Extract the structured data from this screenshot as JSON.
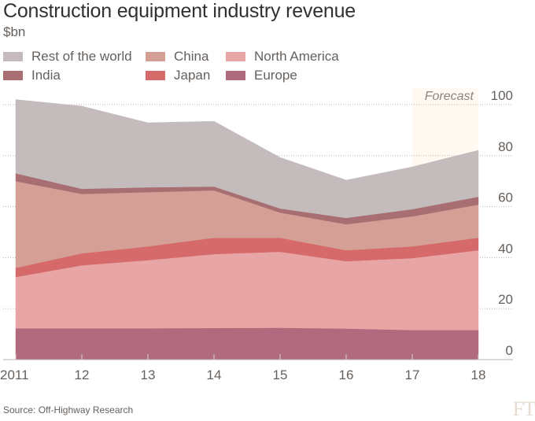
{
  "chart_data": {
    "type": "area",
    "stacked": true,
    "title": "Construction equipment industry revenue",
    "subtitle": "$bn",
    "xlabel": "",
    "ylabel": "$bn",
    "x": [
      "2011",
      "12",
      "13",
      "14",
      "15",
      "16",
      "17",
      "18"
    ],
    "ylim": [
      0,
      100
    ],
    "yticks": [
      0,
      20,
      40,
      60,
      80,
      100
    ],
    "grid": true,
    "legend_position": "top-left",
    "annotations": [
      {
        "text": "Forecast",
        "x_range": [
          "17",
          "18"
        ]
      }
    ],
    "series": [
      {
        "name": "Europe",
        "color": "#b06a7d",
        "values": [
          12.3,
          12.3,
          12.3,
          12.4,
          12.5,
          12.2,
          11.6,
          11.6
        ]
      },
      {
        "name": "North America",
        "color": "#e8a5a5",
        "values": [
          20.1,
          24.7,
          26.7,
          29.0,
          29.8,
          26.4,
          28.2,
          31.3
        ]
      },
      {
        "name": "Japan",
        "color": "#d66a6a",
        "values": [
          3.6,
          4.7,
          5.4,
          6.4,
          5.5,
          4.3,
          4.6,
          4.9
        ]
      },
      {
        "name": "China",
        "color": "#d4a095",
        "values": [
          34.0,
          23.3,
          21.3,
          18.6,
          9.9,
          10.2,
          11.8,
          13.0
        ]
      },
      {
        "name": "India",
        "color": "#a86e72",
        "values": [
          3.1,
          2.0,
          1.9,
          1.5,
          1.6,
          2.5,
          2.8,
          3.1
        ]
      },
      {
        "name": "Rest of the world",
        "color": "#c4bcbc",
        "values": [
          28.9,
          32.4,
          25.3,
          25.6,
          20.0,
          14.8,
          16.6,
          18.2
        ]
      }
    ],
    "source": "Source: Off-Highway Research"
  },
  "header": {
    "title": "Construction equipment industry revenue",
    "subtitle": "$bn"
  },
  "legend": [
    {
      "label": "Rest of the world",
      "color": "#c4bcbc"
    },
    {
      "label": "China",
      "color": "#d4a095"
    },
    {
      "label": "North America",
      "color": "#e8a5a5"
    },
    {
      "label": "India",
      "color": "#a86e72"
    },
    {
      "label": "Japan",
      "color": "#d66a6a"
    },
    {
      "label": "Europe",
      "color": "#b06a7d"
    }
  ],
  "forecast_label": "Forecast",
  "forecast_color": "#fff9f1",
  "footer": {
    "source": "Source: Off-Highway Research",
    "logo": "FT"
  }
}
